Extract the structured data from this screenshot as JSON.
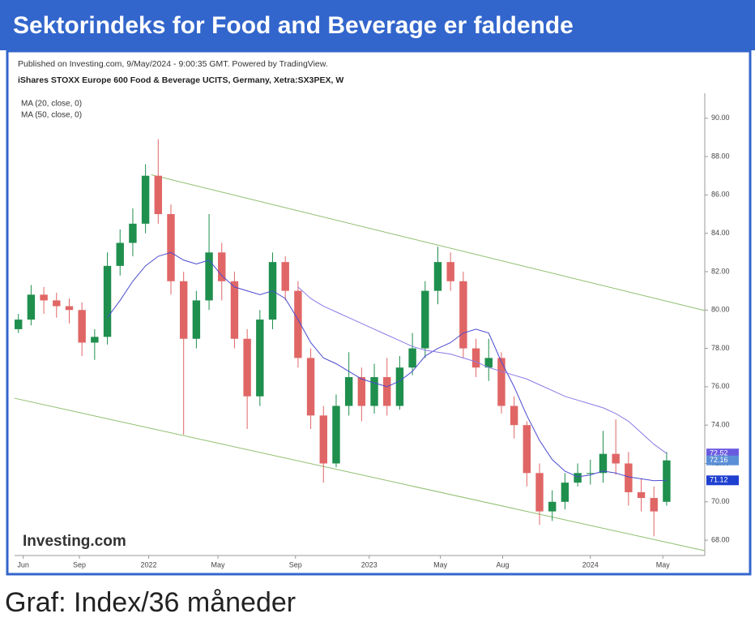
{
  "chart_data": {
    "type": "candlestick",
    "title": "Sektorindeks for Food and Beverage er faldende",
    "source": "Published on Investing.com, 9/May/2024 - 9:00:35 GMT. Powered by TradingView.",
    "subtitle": "iShares STOXX Europe 600 Food & Beverage UCITS, Germany, Xetra:SX3PEX, W",
    "logo": "Investing.com",
    "caption": "Graf: Index/36 måneder",
    "up_color": "#1f8f4e",
    "down_color": "#e06666",
    "open": [
      79.0,
      79.5,
      80.8,
      80.5,
      80.2,
      80.0,
      78.3,
      78.6,
      82.3,
      83.5,
      84.5,
      87.0,
      85.0,
      81.5,
      78.5,
      80.5,
      83.0,
      81.5,
      78.5,
      75.5,
      79.5,
      82.5,
      81.0,
      77.5,
      74.5,
      72.0,
      75.0,
      76.5,
      75.0,
      76.5,
      75.0,
      77.0,
      78.0,
      81.0,
      82.5,
      81.5,
      78.0,
      77.0,
      77.5,
      75.0,
      74.0,
      71.5,
      69.5,
      70.0,
      71.0,
      71.5,
      71.5,
      72.5,
      72.0,
      70.5,
      70.2,
      70.0
    ],
    "high": [
      79.8,
      81.3,
      81.2,
      80.9,
      80.6,
      80.4,
      79.0,
      83.0,
      84.2,
      85.3,
      87.6,
      88.9,
      85.5,
      82.0,
      81.0,
      85.0,
      83.5,
      82.0,
      79.0,
      80.0,
      83.0,
      82.8,
      81.5,
      78.0,
      75.0,
      75.6,
      77.8,
      77.0,
      77.2,
      77.5,
      77.6,
      78.8,
      81.5,
      83.3,
      83.0,
      82.0,
      78.5,
      78.5,
      77.8,
      75.5,
      74.2,
      72.0,
      70.6,
      71.5,
      72.0,
      72.2,
      73.7,
      74.3,
      72.6,
      71.2,
      70.8,
      72.6
    ],
    "low": [
      78.8,
      79.2,
      79.8,
      79.6,
      79.3,
      77.6,
      77.4,
      78.2,
      81.8,
      82.8,
      84.0,
      84.5,
      80.8,
      73.5,
      78.0,
      80.0,
      80.5,
      78.0,
      73.8,
      75.0,
      79.0,
      80.5,
      77.0,
      73.8,
      71.0,
      71.8,
      74.5,
      74.2,
      74.6,
      74.5,
      74.8,
      76.6,
      77.5,
      80.3,
      81.0,
      77.5,
      76.5,
      76.3,
      74.6,
      73.3,
      70.8,
      68.8,
      69.0,
      69.6,
      70.8,
      70.9,
      71.0,
      71.4,
      69.8,
      69.5,
      68.2,
      69.8
    ],
    "close": [
      79.5,
      80.8,
      80.5,
      80.2,
      80.0,
      78.3,
      78.6,
      82.3,
      83.5,
      84.5,
      87.0,
      85.0,
      81.5,
      78.5,
      80.5,
      83.0,
      81.5,
      78.5,
      75.5,
      79.5,
      82.5,
      81.0,
      77.5,
      74.5,
      72.0,
      75.0,
      76.5,
      75.0,
      76.5,
      75.0,
      77.0,
      78.0,
      81.0,
      82.5,
      81.5,
      78.0,
      77.0,
      77.5,
      75.0,
      74.0,
      71.5,
      69.5,
      70.0,
      71.0,
      71.5,
      71.5,
      72.5,
      72.0,
      70.5,
      70.2,
      69.5,
      72.16
    ],
    "close_label_color": "#5b8fd6",
    "series": [
      {
        "name": "MA (20, close, 0)",
        "color": "#4a4ad0",
        "label_color": "#1e3fd0",
        "values": [
          null,
          null,
          null,
          null,
          null,
          null,
          null,
          79.6,
          80.5,
          81.5,
          82.3,
          82.8,
          83.0,
          82.6,
          82.4,
          82.6,
          81.8,
          81.2,
          81.0,
          80.8,
          81.0,
          80.6,
          79.5,
          78.3,
          77.5,
          77.2,
          76.8,
          76.4,
          76.2,
          76.0,
          76.3,
          76.8,
          77.6,
          78.0,
          78.3,
          78.8,
          79.0,
          78.8,
          77.3,
          76.0,
          74.5,
          73.2,
          72.2,
          71.6,
          71.3,
          71.4,
          71.6,
          71.5,
          71.3,
          71.2,
          71.1,
          71.12
        ]
      },
      {
        "name": "MA (50, close, 0)",
        "color": "#8a7ae6",
        "label_color": "#6a5ae0",
        "values": [
          null,
          null,
          null,
          null,
          null,
          null,
          null,
          null,
          null,
          null,
          null,
          null,
          null,
          null,
          null,
          null,
          null,
          null,
          null,
          null,
          null,
          null,
          81.2,
          80.6,
          80.2,
          79.9,
          79.6,
          79.3,
          79.0,
          78.7,
          78.4,
          78.1,
          77.9,
          77.8,
          77.7,
          77.5,
          77.3,
          77.0,
          76.8,
          76.6,
          76.4,
          76.1,
          75.8,
          75.5,
          75.3,
          75.1,
          74.9,
          74.6,
          74.2,
          73.6,
          73.0,
          72.52
        ]
      }
    ],
    "channel_color": "#8fbf6f",
    "channel_lines": [
      {
        "x": [
          10.45,
          54
        ],
        "y": [
          87.05,
          79.97
        ]
      },
      {
        "x": [
          -0.3,
          54
        ],
        "y": [
          75.4,
          67.45
        ]
      }
    ],
    "xlim": [
      -0.3,
      54
    ],
    "xticks": [
      {
        "value": 0.38,
        "label": "Jun"
      },
      {
        "value": 4.8,
        "label": "Sep"
      },
      {
        "value": 10.25,
        "label": "2022"
      },
      {
        "value": 15.7,
        "label": "May"
      },
      {
        "value": 21.8,
        "label": "Sep"
      },
      {
        "value": 27.6,
        "label": "2023"
      },
      {
        "value": 33.2,
        "label": "May"
      },
      {
        "value": 38.1,
        "label": "Aug"
      },
      {
        "value": 45.0,
        "label": "2024"
      },
      {
        "value": 50.7,
        "label": "May"
      }
    ],
    "ylim": [
      67.2,
      91.3
    ],
    "yticks": [
      {
        "value": 68,
        "label": "68.00"
      },
      {
        "value": 70,
        "label": "70.00"
      },
      {
        "value": 72,
        "label": "72.00"
      },
      {
        "value": 74,
        "label": "74.00"
      },
      {
        "value": 76,
        "label": "76.00"
      },
      {
        "value": 78,
        "label": "78.00"
      },
      {
        "value": 80,
        "label": "80.00"
      },
      {
        "value": 82,
        "label": "82.00"
      },
      {
        "value": 84,
        "label": "84.00"
      },
      {
        "value": 86,
        "label": "86.00"
      },
      {
        "value": 88,
        "label": "88.00"
      },
      {
        "value": 90,
        "label": "90.00"
      }
    ]
  }
}
